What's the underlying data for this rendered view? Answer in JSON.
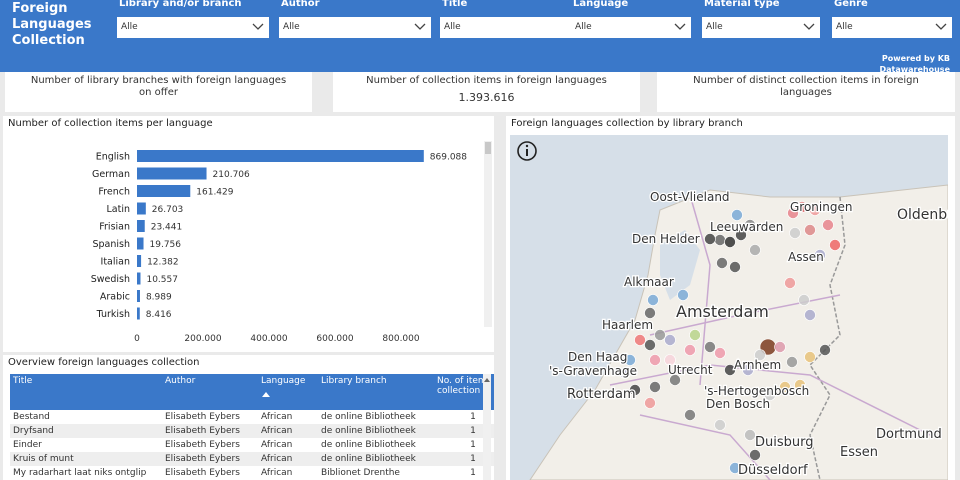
{
  "header": {
    "title": "Foreign Languages Collection",
    "powered_by": "Powered by KB Datawarehouse"
  },
  "slicers": [
    {
      "label": "Library and/or branch",
      "value": "Alle"
    },
    {
      "label": "Author",
      "value": "Alle"
    },
    {
      "label": "Title",
      "value": "Alle"
    },
    {
      "label": "Language",
      "value": "Alle"
    },
    {
      "label": "Material type",
      "value": "Alle"
    },
    {
      "label": "Genre",
      "value": "Alle"
    }
  ],
  "cards": [
    {
      "label": "Number of library branches with foreign languages on offer"
    },
    {
      "label": "Number of collection items in foreign languages",
      "value": "1.393.616"
    },
    {
      "label": "Number of distinct collection items in foreign languages"
    }
  ],
  "chart_data": {
    "type": "bar",
    "orientation": "horizontal",
    "title": "Number of collection items per language",
    "categories": [
      "English",
      "German",
      "French",
      "Latin",
      "Frisian",
      "Spanish",
      "Italian",
      "Swedish",
      "Arabic",
      "Turkish"
    ],
    "values": [
      869088,
      210706,
      161429,
      26703,
      23441,
      19756,
      12382,
      10557,
      8989,
      8416
    ],
    "value_labels": [
      "869.088",
      "210.706",
      "161.429",
      "26.703",
      "23.441",
      "19.756",
      "12.382",
      "10.557",
      "8.989",
      "8.416"
    ],
    "color": "#3a78c9",
    "xlim": [
      0,
      1000000
    ],
    "xticks": [
      0,
      {
        "value": 200000,
        "label": "200.000"
      },
      {
        "value": 400000,
        "label": "400.000"
      },
      {
        "value": 600000,
        "label": "600.000"
      },
      {
        "value": 800000,
        "label": "800.000"
      }
    ]
  },
  "table": {
    "title": "Overview foreign languages collection",
    "columns": [
      "Title",
      "Author",
      "Language",
      "Library branch",
      "No. of items in collection"
    ],
    "rows": [
      [
        "Bestand",
        "Elisabeth Eybers",
        "African",
        "de online Bibliotheek",
        1
      ],
      [
        "Dryfsand",
        "Elisabeth Eybers",
        "African",
        "de online Bibliotheek",
        1
      ],
      [
        "Einder",
        "Elisabeth Eybers",
        "African",
        "de online Bibliotheek",
        1
      ],
      [
        "Kruis of munt",
        "Elisabeth Eybers",
        "African",
        "de online Bibliotheek",
        1
      ],
      [
        "My radarhart laat niks ontglip",
        "Elisabeth Eybers",
        "African",
        "Biblionet Drenthe",
        1
      ]
    ]
  },
  "map": {
    "title": "Foreign languages collection by library branch",
    "labels": [
      "Oost-Vlieland",
      "Groningen",
      "Oldenburg",
      "Leeuwarden",
      "Den Helder",
      "Assen",
      "Alkmaar",
      "Amsterdam",
      "Haarlem",
      "Den Haag",
      "'s-Gravenhage",
      "Utrecht",
      "Arnhem",
      "Rotterdam",
      "'s-Hertogenbosch",
      "Den Bosch",
      "Dortmund",
      "Duisburg",
      "Essen",
      "Düsseldorf"
    ]
  }
}
